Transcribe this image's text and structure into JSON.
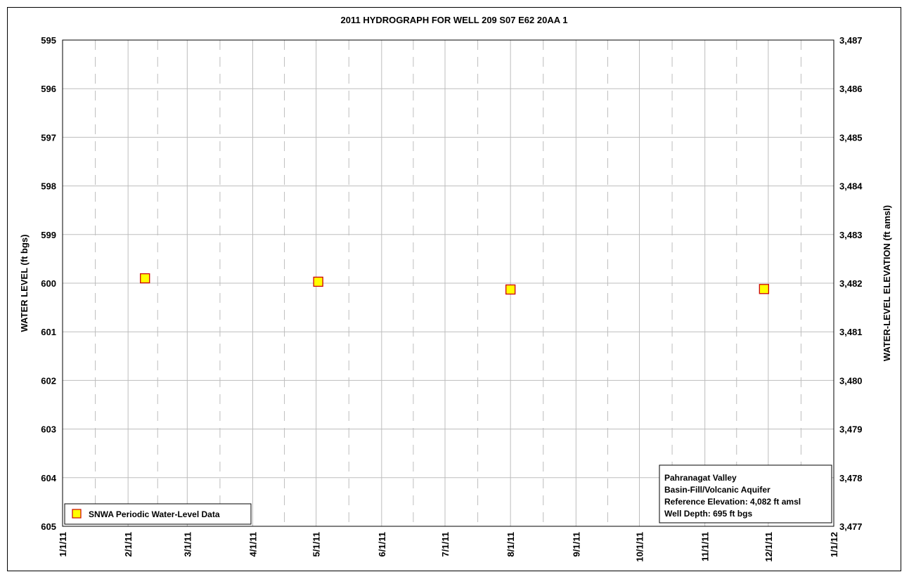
{
  "chart_data": {
    "type": "scatter",
    "title": "2011 HYDROGRAPH FOR WELL 209 S07 E62 20AA 1",
    "ylabel_left": "WATER LEVEL (ft bgs)",
    "ylabel_right": "WATER-LEVEL ELEVATION (ft amsl)",
    "x_tick_labels": [
      "1/1/11",
      "2/1/11",
      "3/1/11",
      "4/1/11",
      "5/1/11",
      "6/1/11",
      "7/1/11",
      "8/1/11",
      "9/1/11",
      "10/1/11",
      "11/1/11",
      "12/1/11",
      "1/1/12"
    ],
    "x_range": [
      "2011-01-01",
      "2012-01-01"
    ],
    "ylim_left": [
      595,
      605
    ],
    "y_left_inverted": true,
    "y_ticks_left": [
      "595",
      "596",
      "597",
      "598",
      "599",
      "600",
      "601",
      "602",
      "603",
      "604",
      "605"
    ],
    "ylim_right": [
      3477,
      3487
    ],
    "y_ticks_right": [
      "3,487",
      "3,486",
      "3,485",
      "3,484",
      "3,483",
      "3,482",
      "3,481",
      "3,480",
      "3,479",
      "3,478",
      "3,477"
    ],
    "grid": true,
    "legend_position": "bottom-left",
    "series": [
      {
        "name": "SNWA Periodic Water-Level Data",
        "marker": "square",
        "fill_color": "#ffff00",
        "edge_color": "#cc0000",
        "points": [
          {
            "x": "2011-02-09",
            "y": 599.9
          },
          {
            "x": "2011-05-02",
            "y": 599.97
          },
          {
            "x": "2011-08-01",
            "y": 600.13
          },
          {
            "x": "2011-11-29",
            "y": 600.12
          }
        ]
      }
    ]
  },
  "info_box": {
    "line1": "Pahranagat Valley",
    "line2": "Basin-Fill/Volcanic Aquifer",
    "line3": "Reference Elevation: 4,082 ft amsl",
    "line4": "Well Depth: 695 ft bgs"
  },
  "colors": {
    "grid_major": "#bdbdbd",
    "grid_minor": "#bdbdbd",
    "marker_fill": "#ffff00",
    "marker_edge": "#cc0000"
  }
}
